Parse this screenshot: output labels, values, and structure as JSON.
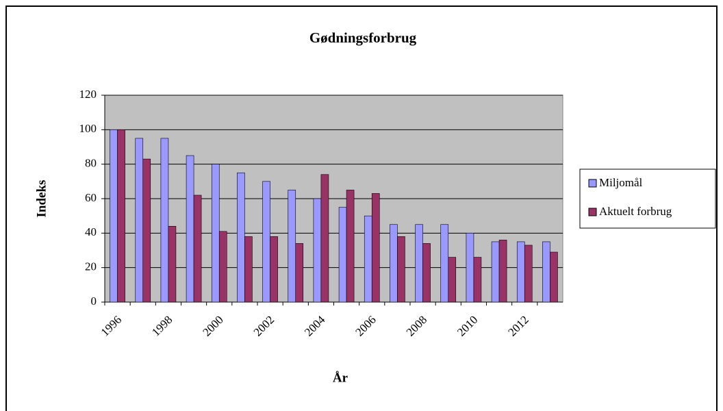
{
  "chart_data": {
    "type": "bar",
    "title": "Gødningsforbrug",
    "xlabel": "År",
    "ylabel": "Indeks",
    "categories": [
      "1996",
      null,
      "1998",
      null,
      "2000",
      null,
      "2002",
      null,
      "2004",
      null,
      "2006",
      null,
      "2008",
      null,
      "2010",
      null,
      "2012",
      null
    ],
    "series": [
      {
        "name": "Miljomål",
        "color": "#9999ff",
        "values": [
          100,
          95,
          95,
          85,
          80,
          75,
          70,
          65,
          60,
          55,
          50,
          45,
          45,
          45,
          40,
          35,
          35,
          35
        ]
      },
      {
        "name": "Aktuelt forbrug",
        "color": "#993366",
        "values": [
          100,
          83,
          44,
          62,
          41,
          38,
          38,
          34,
          74,
          65,
          63,
          38,
          34,
          26,
          26,
          36,
          33,
          29
        ]
      }
    ],
    "ylim": [
      0,
      120
    ],
    "yticks": [
      0,
      20,
      40,
      60,
      80,
      100,
      120
    ],
    "grid": true,
    "legend": "right"
  }
}
